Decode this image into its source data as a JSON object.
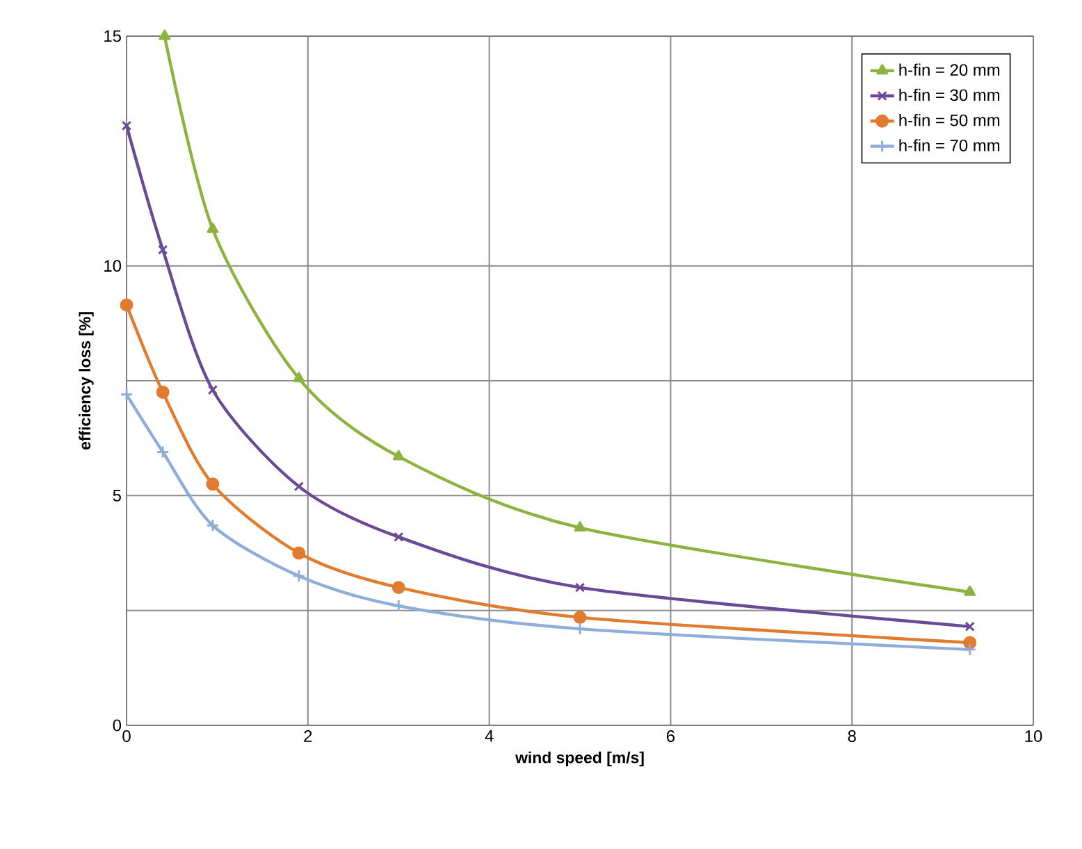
{
  "chart_data": {
    "type": "line",
    "xlabel": "wind speed [m/s]",
    "ylabel": "efficiency loss [%]",
    "x": [
      0,
      0.4,
      0.95,
      1.9,
      3,
      5,
      9.3
    ],
    "series": [
      {
        "name": "h-fin = 20 mm",
        "color": "#8cb33f",
        "marker": "triangle",
        "x": [
          0.42,
          0.95,
          1.9,
          3,
          5,
          9.3
        ],
        "values": [
          15,
          10.8,
          7.55,
          5.85,
          4.3,
          2.9
        ]
      },
      {
        "name": "h-fin = 30 mm",
        "color": "#6a4a96",
        "marker": "cross",
        "values": [
          13.05,
          10.35,
          7.3,
          5.2,
          4.1,
          3.0,
          2.15
        ]
      },
      {
        "name": "h-fin = 50 mm",
        "color": "#e07b30",
        "marker": "circle",
        "values": [
          9.15,
          7.25,
          5.25,
          3.75,
          3.0,
          2.35,
          1.8
        ]
      },
      {
        "name": "h-fin = 70 mm",
        "color": "#8fadd9",
        "marker": "plus",
        "values": [
          7.2,
          5.95,
          4.35,
          3.25,
          2.6,
          2.1,
          1.65
        ]
      }
    ],
    "xlim": [
      0,
      10
    ],
    "ylim": [
      0,
      15
    ],
    "xticks": [
      0,
      2,
      4,
      6,
      8,
      10
    ],
    "yticks": [
      0,
      {
        "value": 2.5,
        "label": null
      },
      5,
      {
        "value": 7.5,
        "label": null
      },
      10,
      15
    ],
    "grid": true,
    "legend": "top right",
    "line_style": "solid"
  }
}
